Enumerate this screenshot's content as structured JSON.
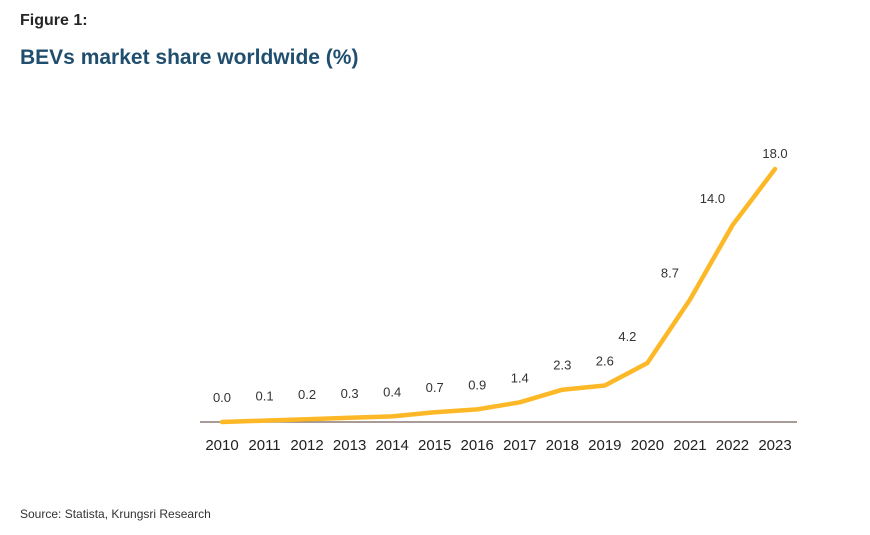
{
  "header": {
    "figure_label": "Figure 1:",
    "title": "BEVs market share worldwide (%)"
  },
  "footer": {
    "source": "Source: Statista, Krungsri Research"
  },
  "colors": {
    "line": "#FDB827",
    "axis": "#8c7a76",
    "title": "#1f4e6e"
  },
  "chart_data": {
    "type": "line",
    "title": "BEVs market share worldwide (%)",
    "xlabel": "",
    "ylabel": "",
    "categories": [
      "2010",
      "2011",
      "2012",
      "2013",
      "2014",
      "2015",
      "2016",
      "2017",
      "2018",
      "2019",
      "2020",
      "2021",
      "2022",
      "2023"
    ],
    "series": [
      {
        "name": "BEVs market share (%)",
        "values": [
          0.0,
          0.1,
          0.2,
          0.3,
          0.4,
          0.7,
          0.9,
          1.4,
          2.3,
          2.6,
          4.2,
          8.7,
          14.0,
          18.0
        ],
        "labels": [
          "0.0",
          "0.1",
          "0.2",
          "0.3",
          "0.4",
          "0.7",
          "0.9",
          "1.4",
          "2.3",
          "2.6",
          "4.2",
          "8.7",
          "14.0",
          "18.0"
        ]
      }
    ],
    "ylim": [
      0,
      18
    ],
    "grid": false,
    "legend": "none",
    "data_labels": true
  }
}
